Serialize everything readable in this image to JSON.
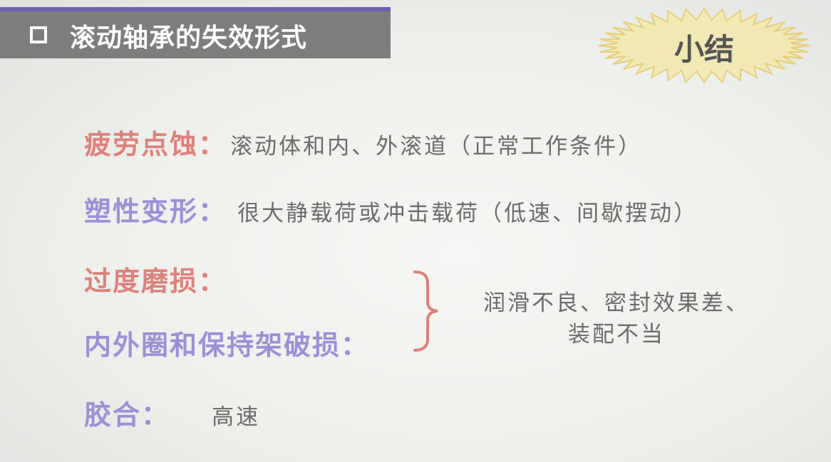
{
  "title": {
    "text": "滚动轴承的失效形式"
  },
  "badge": {
    "text": "小结"
  },
  "items": [
    {
      "term": "疲劳点蚀：",
      "desc": "滚动体和内、外滚道（正常工作条件）"
    },
    {
      "term": "塑性变形：",
      "desc": "很大静载荷或冲击载荷（低速、间歇摆动）"
    },
    {
      "term": "过度磨损："
    },
    {
      "term": "内外圈和保持架破损："
    },
    {
      "term": "胶合：",
      "desc": "高速"
    }
  ],
  "merged_desc": {
    "line1": "润滑不良、密封效果差、",
    "line2": "装配不当"
  },
  "colors": {
    "title_bar": "#7d7d7d",
    "title_bar_top": "#6f5fb6",
    "badge_fill": "#f2e8b4",
    "badge_stroke": "#e6cf7a",
    "term_red": "#e0807a",
    "term_purple": "#9b90d8",
    "desc_text": "#6c6c6c",
    "brace": "#e0807a"
  }
}
